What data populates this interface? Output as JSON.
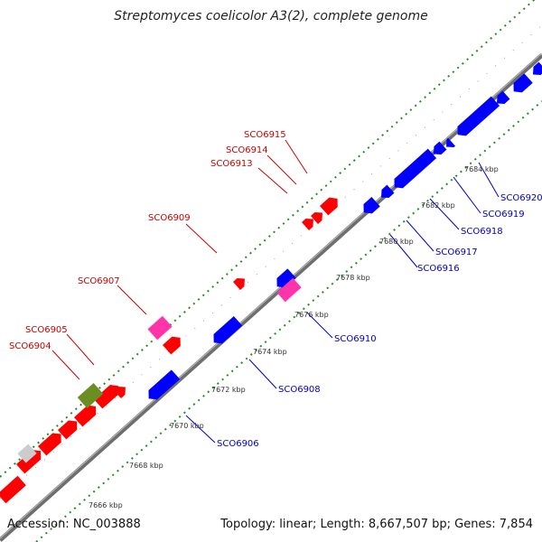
{
  "title": "Streptomyces coelicolor A3(2), complete genome",
  "footer": {
    "accession": "Accession: NC_003888",
    "summary": "Topology: linear; Length: 8,667,507 bp; Genes: 7,854"
  },
  "colors": {
    "forward": "#ff0000",
    "reverse": "#0000ff",
    "forward_label": "#cc0000",
    "reverse_label": "#0000cc",
    "axis": "#777777",
    "grid": "#228b22",
    "pink": "#ff33aa",
    "olive": "#6b8e23",
    "grey": "#cccccc"
  },
  "scale_labels": [
    "7666 kbp",
    "7668 kbp",
    "7670 kbp",
    "7672 kbp",
    "7674 kbp",
    "7676 kbp",
    "7678 kbp",
    "7680 kbp",
    "7682 kbp",
    "7684 kbp"
  ],
  "forward_labels": [
    "SCO6904",
    "SCO6905",
    "SCO6907",
    "SCO6909",
    "SCO6913",
    "SCO6914",
    "SCO6915"
  ],
  "reverse_labels": [
    "SCO6906",
    "SCO6908",
    "SCO6910",
    "SCO6916",
    "SCO6917",
    "SCO6918",
    "SCO6919",
    "SCO6920"
  ]
}
